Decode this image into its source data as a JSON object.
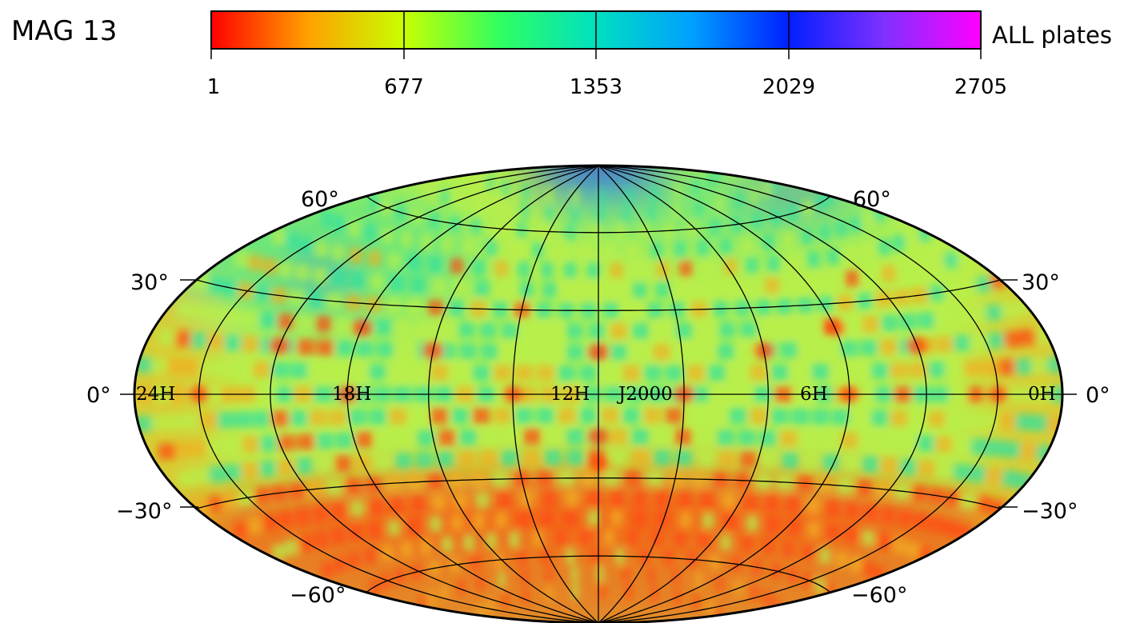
{
  "title": "MAG 13",
  "legend_label": "ALL plates",
  "epoch_label": "J2000",
  "colorbar": {
    "ticks": [
      "1",
      "677",
      "1353",
      "2029",
      "2705"
    ],
    "colors": [
      "#ff0000",
      "#ffa000",
      "#c8ff00",
      "#30ff60",
      "#00e0c0",
      "#00a0ff",
      "#0020ff",
      "#8030ff",
      "#ff00ff"
    ]
  },
  "projection": "hammer-aitoff",
  "ra_labels": [
    "24H",
    "18H",
    "12H",
    "6H",
    "0H"
  ],
  "dec_labels": {
    "left": [
      "60°",
      "30°",
      "0°",
      "−30°",
      "−60°"
    ],
    "right": [
      "60°",
      "30°",
      "0°",
      "−30°",
      "−60°"
    ]
  },
  "colors": {
    "background": "#ffffff",
    "grid": "#000000",
    "base_fill": "#b8ef4a",
    "low_coverage": "#ff4a10",
    "mid_coverage": "#f0b020",
    "high_coverage": "#30e0a0",
    "peak_coverage": "#2030ff"
  }
}
